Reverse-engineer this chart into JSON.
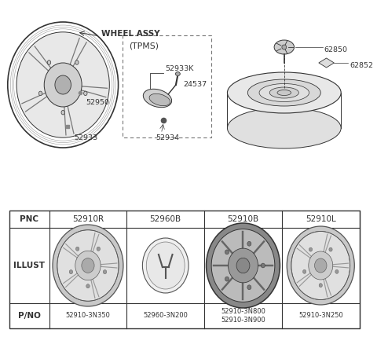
{
  "background_color": "#ffffff",
  "line_color": "#333333",
  "table": {
    "headers": [
      "PNC",
      "52910R",
      "52960B",
      "52910B",
      "52910L"
    ],
    "row_illust": "ILLUST",
    "row_pno": "P/NO",
    "pno_values": [
      "52910-3N350",
      "52960-3N200",
      "52910-3N800\n52910-3N900",
      "52910-3N250"
    ]
  },
  "part_labels": {
    "wheel_assy": "WHEEL ASSY",
    "tpms": "(TPMS)",
    "52950": "52950",
    "52933": "52933",
    "52933K": "52933K",
    "24537": "24537",
    "52934": "52934",
    "62850": "62850",
    "62852": "62852"
  }
}
